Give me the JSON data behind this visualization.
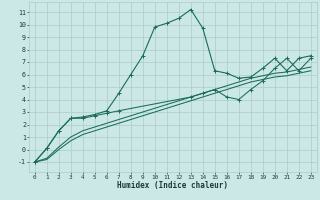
{
  "xlabel": "Humidex (Indice chaleur)",
  "bg_color": "#cce8e6",
  "line_color": "#1a6b5a",
  "grid_color": "#aacccc",
  "xlim": [
    -0.5,
    23.5
  ],
  "ylim": [
    -1.8,
    11.8
  ],
  "xticks": [
    0,
    1,
    2,
    3,
    4,
    5,
    6,
    7,
    8,
    9,
    10,
    11,
    12,
    13,
    14,
    15,
    16,
    17,
    18,
    19,
    20,
    21,
    22,
    23
  ],
  "yticks": [
    -1,
    0,
    1,
    2,
    3,
    4,
    5,
    6,
    7,
    8,
    9,
    10,
    11
  ],
  "curve1_x": [
    0,
    1,
    2,
    3,
    4,
    5,
    6,
    7,
    8,
    9,
    10,
    11,
    12,
    13,
    14,
    15,
    16,
    17,
    18,
    19,
    20,
    21,
    22,
    23
  ],
  "curve1_y": [
    -1.0,
    0.1,
    1.5,
    2.5,
    2.6,
    2.8,
    3.1,
    4.5,
    6.0,
    7.5,
    9.8,
    10.1,
    10.5,
    11.2,
    9.7,
    6.3,
    6.1,
    5.7,
    5.8,
    6.5,
    7.3,
    6.3,
    7.3,
    7.5
  ],
  "curve2_x": [
    0,
    1,
    2,
    3,
    4,
    5,
    6,
    7,
    8,
    9,
    10,
    11,
    12,
    13,
    14,
    15,
    16,
    17,
    18,
    19,
    20,
    21,
    22,
    23
  ],
  "curve2_y": [
    -1.0,
    -0.7,
    0.2,
    1.0,
    1.5,
    1.8,
    2.1,
    2.4,
    2.7,
    3.0,
    3.3,
    3.6,
    3.9,
    4.2,
    4.5,
    4.8,
    5.1,
    5.4,
    5.7,
    5.9,
    6.1,
    6.2,
    6.4,
    6.6
  ],
  "curve3_x": [
    0,
    1,
    2,
    3,
    4,
    5,
    6,
    7,
    8,
    9,
    10,
    11,
    12,
    13,
    14,
    15,
    16,
    17,
    18,
    19,
    20,
    21,
    22,
    23
  ],
  "curve3_y": [
    -1.0,
    -0.8,
    0.0,
    0.7,
    1.2,
    1.5,
    1.8,
    2.1,
    2.4,
    2.7,
    3.0,
    3.3,
    3.6,
    3.9,
    4.2,
    4.5,
    4.8,
    5.1,
    5.4,
    5.6,
    5.8,
    5.9,
    6.1,
    6.3
  ],
  "curve4_x": [
    0,
    1,
    2,
    3,
    4,
    5,
    6,
    7,
    13,
    14,
    15,
    16,
    17,
    18,
    19,
    20,
    21,
    22,
    23
  ],
  "curve4_y": [
    -1.0,
    0.1,
    1.5,
    2.5,
    2.5,
    2.7,
    2.9,
    3.1,
    4.2,
    4.5,
    4.8,
    4.2,
    4.0,
    4.8,
    5.5,
    6.5,
    7.3,
    6.3,
    7.3
  ]
}
